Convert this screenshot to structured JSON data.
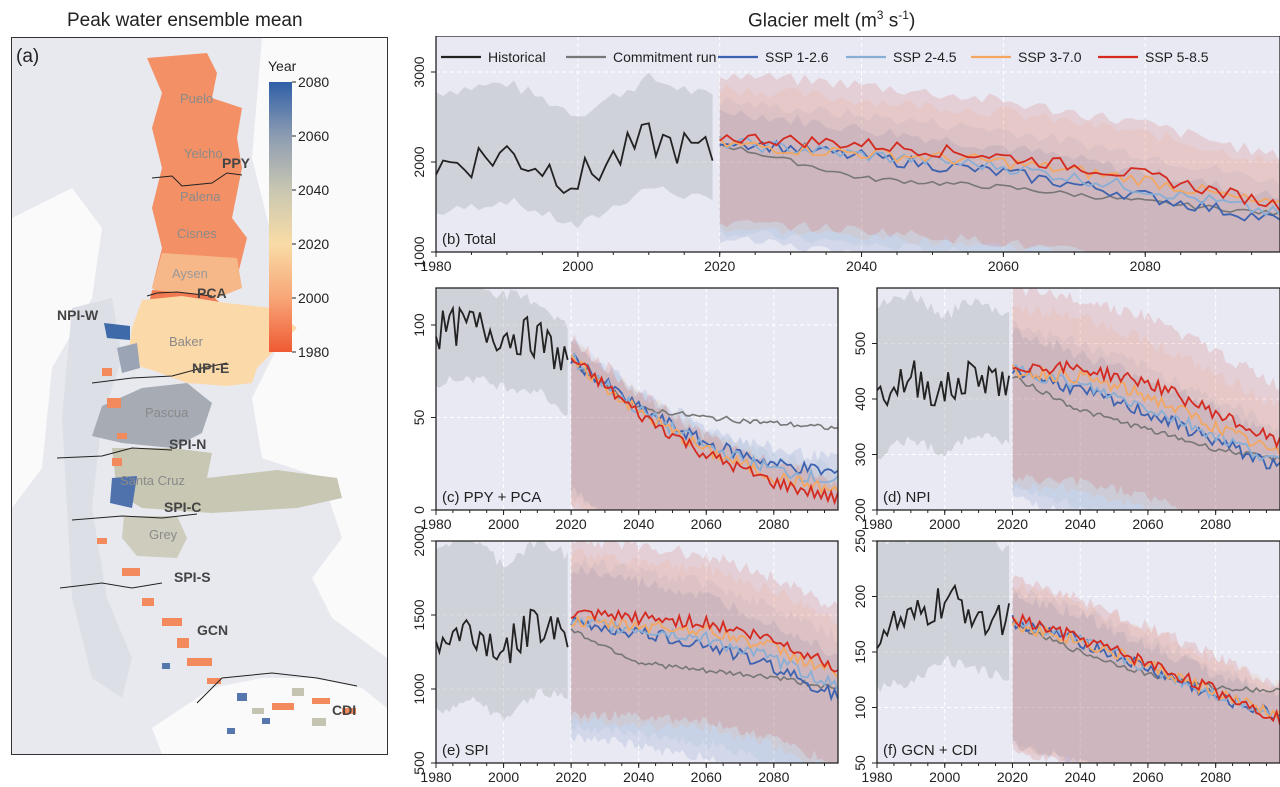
{
  "map": {
    "title": "Peak water ensemble mean",
    "panel_label": "(a)",
    "colorbar": {
      "title": "Year",
      "ticks": [
        "2080",
        "2060",
        "2040",
        "2020",
        "2000",
        "1980"
      ],
      "range": [
        1980,
        2080
      ],
      "colors": [
        "#2f5fa7",
        "#8d9cb2",
        "#c8c7b2",
        "#f9dca6",
        "#f8a677",
        "#ef5a33"
      ]
    },
    "region_labels": [
      "PPY",
      "PCA",
      "NPI-W",
      "NPI-E",
      "SPI-N",
      "SPI-C",
      "SPI-S",
      "GCN",
      "CDI"
    ],
    "basin_labels": [
      "Puelo",
      "Yelcho",
      "Palena",
      "Cisnes",
      "Aysen",
      "Baker",
      "Pascua",
      "Santa Cruz",
      "Grey"
    ],
    "colors": {
      "sea": "#e8e9ef",
      "land": "#fafafa",
      "ice": "#dcdfe6"
    }
  },
  "chart_title": "Glacier melt (m³ s⁻¹)",
  "legend": [
    {
      "name": "Historical",
      "color": "#222222"
    },
    {
      "name": "Commitment run",
      "color": "#777777"
    },
    {
      "name": "SSP 1-2.6",
      "color": "#3d63b0"
    },
    {
      "name": "SSP 2-4.5",
      "color": "#89aed6"
    },
    {
      "name": "SSP 3-7.0",
      "color": "#f3a761"
    },
    {
      "name": "SSP 5-8.5",
      "color": "#d42a20"
    }
  ],
  "chart_data": [
    {
      "id": "b",
      "type": "line",
      "label": "(b) Total",
      "xlim": [
        1980,
        2099
      ],
      "ylim": [
        1000,
        3400
      ],
      "xticks": [
        "1980",
        "2000",
        "2020",
        "2040",
        "2060",
        "2080"
      ],
      "yticks": [
        "1000",
        "2000",
        "3000"
      ],
      "series": [
        {
          "name": "Historical",
          "x": [
            1980,
            1990,
            2000,
            2010,
            2019
          ],
          "y": [
            1950,
            2100,
            1800,
            2250,
            2080
          ],
          "band": [
            1450,
            2750
          ]
        },
        {
          "name": "Commitment run",
          "x": [
            2020,
            2040,
            2060,
            2080,
            2099
          ],
          "y": [
            2200,
            1820,
            1720,
            1560,
            1420
          ],
          "band": [
            1400,
            2300
          ]
        },
        {
          "name": "SSP 1-2.6",
          "x": [
            2020,
            2040,
            2060,
            2080,
            2099
          ],
          "y": [
            2250,
            2060,
            1880,
            1620,
            1350
          ],
          "band": [
            1180,
            2550
          ]
        },
        {
          "name": "SSP 2-4.5",
          "x": [
            2020,
            2040,
            2060,
            2080,
            2099
          ],
          "y": [
            2220,
            2080,
            1950,
            1700,
            1420
          ],
          "band": [
            1250,
            2650
          ]
        },
        {
          "name": "SSP 3-7.0",
          "x": [
            2020,
            2040,
            2060,
            2080,
            2099
          ],
          "y": [
            2200,
            2100,
            2000,
            1800,
            1500
          ],
          "band": [
            1300,
            2800
          ]
        },
        {
          "name": "SSP 5-8.5",
          "x": [
            2020,
            2040,
            2060,
            2080,
            2099
          ],
          "y": [
            2280,
            2200,
            2060,
            1850,
            1520
          ],
          "band": [
            1350,
            2950
          ]
        }
      ]
    },
    {
      "id": "c",
      "type": "line",
      "label": "(c) PPY + PCA",
      "xlim": [
        1980,
        2099
      ],
      "ylim": [
        0,
        120
      ],
      "xticks": [
        "1980",
        "2000",
        "2020",
        "2040",
        "2060",
        "2080"
      ],
      "yticks": [
        "0",
        "50",
        "100"
      ],
      "series": [
        {
          "name": "Historical",
          "x": [
            1980,
            1990,
            2000,
            2010,
            2019
          ],
          "y": [
            97,
            100,
            95,
            93,
            80
          ],
          "band": [
            70,
            120
          ]
        },
        {
          "name": "Commitment run",
          "x": [
            2020,
            2040,
            2060,
            2080,
            2099
          ],
          "y": [
            80,
            55,
            50,
            47,
            44
          ],
          "band": [
            35,
            80
          ]
        },
        {
          "name": "SSP 1-2.6",
          "x": [
            2020,
            2040,
            2060,
            2080,
            2099
          ],
          "y": [
            82,
            55,
            36,
            25,
            20
          ],
          "band": [
            12,
            90
          ]
        },
        {
          "name": "SSP 2-4.5",
          "x": [
            2020,
            2040,
            2060,
            2080,
            2099
          ],
          "y": [
            82,
            54,
            34,
            22,
            15
          ],
          "band": [
            10,
            90
          ]
        },
        {
          "name": "SSP 3-7.0",
          "x": [
            2020,
            2040,
            2060,
            2080,
            2099
          ],
          "y": [
            81,
            53,
            32,
            18,
            10
          ],
          "band": [
            6,
            90
          ]
        },
        {
          "name": "SSP 5-8.5",
          "x": [
            2020,
            2040,
            2060,
            2080,
            2099
          ],
          "y": [
            82,
            52,
            30,
            15,
            6
          ],
          "band": [
            3,
            92
          ]
        }
      ]
    },
    {
      "id": "d",
      "type": "line",
      "label": "(d) NPI",
      "xlim": [
        1980,
        2099
      ],
      "ylim": [
        200,
        600
      ],
      "xticks": [
        "1980",
        "2000",
        "2020",
        "2040",
        "2060",
        "2080"
      ],
      "yticks": [
        "200",
        "300",
        "400",
        "500"
      ],
      "series": [
        {
          "name": "Historical",
          "x": [
            1980,
            1990,
            2000,
            2010,
            2019
          ],
          "y": [
            405,
            440,
            410,
            450,
            425
          ],
          "band": [
            300,
            560
          ]
        },
        {
          "name": "Commitment run",
          "x": [
            2020,
            2040,
            2060,
            2080,
            2099
          ],
          "y": [
            440,
            380,
            345,
            310,
            290
          ],
          "band": [
            280,
            460
          ]
        },
        {
          "name": "SSP 1-2.6",
          "x": [
            2020,
            2040,
            2060,
            2080,
            2099
          ],
          "y": [
            455,
            415,
            375,
            325,
            275
          ],
          "band": [
            230,
            520
          ]
        },
        {
          "name": "SSP 2-4.5",
          "x": [
            2020,
            2040,
            2060,
            2080,
            2099
          ],
          "y": [
            455,
            425,
            385,
            335,
            285
          ],
          "band": [
            240,
            530
          ]
        },
        {
          "name": "SSP 3-7.0",
          "x": [
            2020,
            2040,
            2060,
            2080,
            2099
          ],
          "y": [
            450,
            440,
            405,
            350,
            300
          ],
          "band": [
            250,
            560
          ]
        },
        {
          "name": "SSP 5-8.5",
          "x": [
            2020,
            2040,
            2060,
            2080,
            2099
          ],
          "y": [
            460,
            455,
            430,
            375,
            320
          ],
          "band": [
            260,
            590
          ]
        }
      ]
    },
    {
      "id": "e",
      "type": "line",
      "label": "(e) SPI",
      "xlim": [
        1980,
        2099
      ],
      "ylim": [
        500,
        2000
      ],
      "xticks": [
        "1980",
        "2000",
        "2020",
        "2040",
        "2060",
        "2080"
      ],
      "yticks": [
        "500",
        "1000",
        "1500",
        "2000"
      ],
      "series": [
        {
          "name": "Historical",
          "x": [
            1980,
            1990,
            2000,
            2010,
            2019
          ],
          "y": [
            1300,
            1400,
            1250,
            1450,
            1400
          ],
          "band": [
            850,
            1950
          ]
        },
        {
          "name": "Commitment run",
          "x": [
            2020,
            2040,
            2060,
            2080,
            2099
          ],
          "y": [
            1400,
            1180,
            1120,
            1080,
            1000
          ],
          "band": [
            850,
            1500
          ]
        },
        {
          "name": "SSP 1-2.6",
          "x": [
            2020,
            2040,
            2060,
            2080,
            2099
          ],
          "y": [
            1450,
            1380,
            1300,
            1150,
            950
          ],
          "band": [
            700,
            1800
          ]
        },
        {
          "name": "SSP 2-4.5",
          "x": [
            2020,
            2040,
            2060,
            2080,
            2099
          ],
          "y": [
            1440,
            1400,
            1340,
            1200,
            1020
          ],
          "band": [
            750,
            1850
          ]
        },
        {
          "name": "SSP 3-7.0",
          "x": [
            2020,
            2040,
            2060,
            2080,
            2099
          ],
          "y": [
            1450,
            1430,
            1400,
            1280,
            1100
          ],
          "band": [
            800,
            1900
          ]
        },
        {
          "name": "SSP 5-8.5",
          "x": [
            2020,
            2040,
            2060,
            2080,
            2099
          ],
          "y": [
            1500,
            1480,
            1450,
            1330,
            1150
          ],
          "band": [
            850,
            2000
          ]
        }
      ]
    },
    {
      "id": "f",
      "type": "line",
      "label": "(f) GCN + CDI",
      "xlim": [
        1980,
        2099
      ],
      "ylim": [
        50,
        250
      ],
      "xticks": [
        "1980",
        "2000",
        "2020",
        "2040",
        "2060",
        "2080"
      ],
      "yticks": [
        "50",
        "100",
        "150",
        "200",
        "250"
      ],
      "series": [
        {
          "name": "Historical",
          "x": [
            1980,
            1990,
            2000,
            2010,
            2019
          ],
          "y": [
            170,
            175,
            195,
            185,
            180
          ],
          "band": [
            120,
            250
          ]
        },
        {
          "name": "Commitment run",
          "x": [
            2020,
            2040,
            2060,
            2080,
            2099
          ],
          "y": [
            175,
            150,
            130,
            118,
            115
          ],
          "band": [
            105,
            190
          ]
        },
        {
          "name": "SSP 1-2.6",
          "x": [
            2020,
            2040,
            2060,
            2080,
            2099
          ],
          "y": [
            178,
            160,
            135,
            110,
            92
          ],
          "band": [
            70,
            200
          ]
        },
        {
          "name": "SSP 2-4.5",
          "x": [
            2020,
            2040,
            2060,
            2080,
            2099
          ],
          "y": [
            178,
            160,
            136,
            112,
            93
          ],
          "band": [
            70,
            205
          ]
        },
        {
          "name": "SSP 3-7.0",
          "x": [
            2020,
            2040,
            2060,
            2080,
            2099
          ],
          "y": [
            176,
            160,
            138,
            113,
            92
          ],
          "band": [
            68,
            210
          ]
        },
        {
          "name": "SSP 5-8.5",
          "x": [
            2020,
            2040,
            2060,
            2080,
            2099
          ],
          "y": [
            180,
            162,
            140,
            115,
            90
          ],
          "band": [
            65,
            215
          ]
        }
      ]
    }
  ]
}
